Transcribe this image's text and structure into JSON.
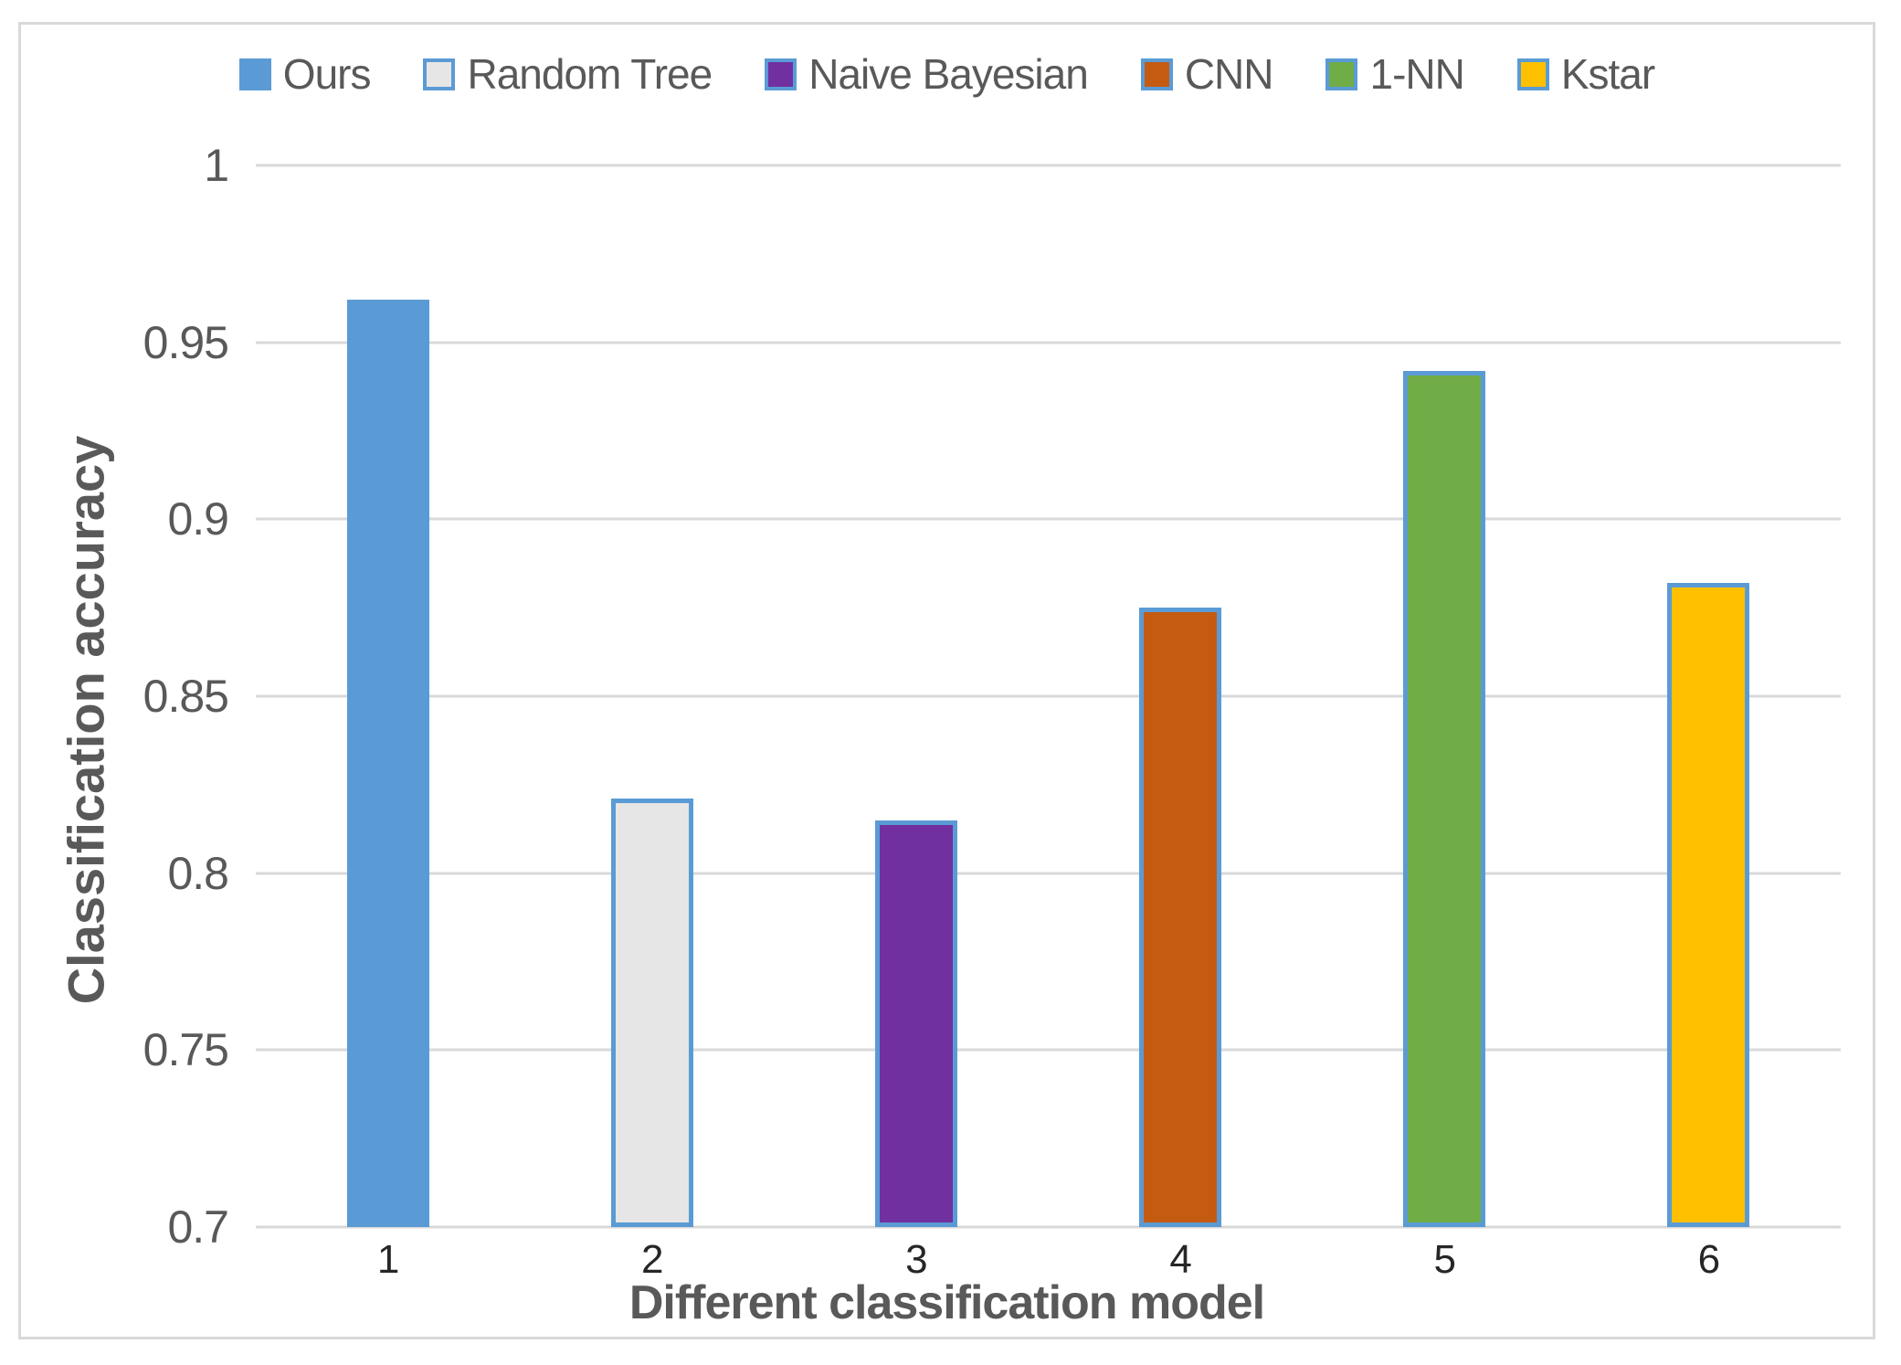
{
  "figure": {
    "background": "#FFFFFF",
    "frame_color": "#D9D9D9"
  },
  "chart_data": {
    "type": "bar",
    "title": "",
    "xlabel": "Different classification model",
    "ylabel": "Classification accuracy",
    "categories": [
      "1",
      "2",
      "3",
      "4",
      "5",
      "6"
    ],
    "series": [
      {
        "name": "Ours",
        "value": 0.962,
        "color": "#5B9BD5"
      },
      {
        "name": "Random Tree",
        "value": 0.821,
        "color": "#E7E6E6"
      },
      {
        "name": "Naive Bayesian",
        "value": 0.815,
        "color": "#7030A0"
      },
      {
        "name": "CNN",
        "value": 0.875,
        "color": "#C55A11"
      },
      {
        "name": "1-NN",
        "value": 0.942,
        "color": "#70AD47"
      },
      {
        "name": "Kstar",
        "value": 0.882,
        "color": "#FFC000"
      }
    ],
    "ylim": [
      0.7,
      1.0
    ],
    "yticks": [
      {
        "value": 1.0,
        "label": "1"
      },
      {
        "value": 0.95,
        "label": "0.95"
      },
      {
        "value": 0.9,
        "label": "0.9"
      },
      {
        "value": 0.85,
        "label": "0.85"
      },
      {
        "value": 0.8,
        "label": "0.8"
      },
      {
        "value": 0.75,
        "label": "0.75"
      },
      {
        "value": 0.7,
        "label": "0.7"
      }
    ],
    "grid": true,
    "legend_position": "top",
    "bar_border_color": "#5B9BD5",
    "gridline_color": "#D9D9D9",
    "axis_text_color": "#595959",
    "category_text_color": "#262626"
  }
}
